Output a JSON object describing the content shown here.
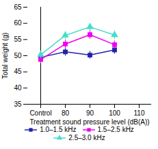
{
  "chart_data": {
    "type": "line",
    "xlabel": "Treatment sound pressure level (dB(A))",
    "ylabel": "Total weight (g)",
    "categories": [
      "Control",
      "80",
      "90",
      "100",
      "110"
    ],
    "ylim": [
      35,
      65
    ],
    "yticks": [
      35,
      40,
      45,
      50,
      55,
      60,
      65
    ],
    "legend": "bottom",
    "series": [
      {
        "name": "1.0–1.5 kHz",
        "color": "#2222aa",
        "marker": "square",
        "line_style": "solid",
        "values": [
          49.5,
          51.2,
          50.2,
          51.8,
          null
        ],
        "errors": [
          1.1,
          1.3,
          1.2,
          1.3,
          null
        ]
      },
      {
        "name": "1.5–2.5 kHz",
        "color": "#ee00ee",
        "marker": "square",
        "line_style": "solid",
        "values": [
          48.8,
          53.6,
          56.5,
          53.4,
          null
        ],
        "errors": [
          1.2,
          1.3,
          1.4,
          1.2,
          null
        ]
      },
      {
        "name": "2.5–3.0 kHz",
        "color": "#44ddcc",
        "marker": "triangle",
        "line_style": "solid",
        "values": [
          50.3,
          56.3,
          58.9,
          56.4,
          null
        ],
        "errors": [
          1.1,
          1.2,
          1.1,
          1.3,
          null
        ]
      }
    ]
  }
}
